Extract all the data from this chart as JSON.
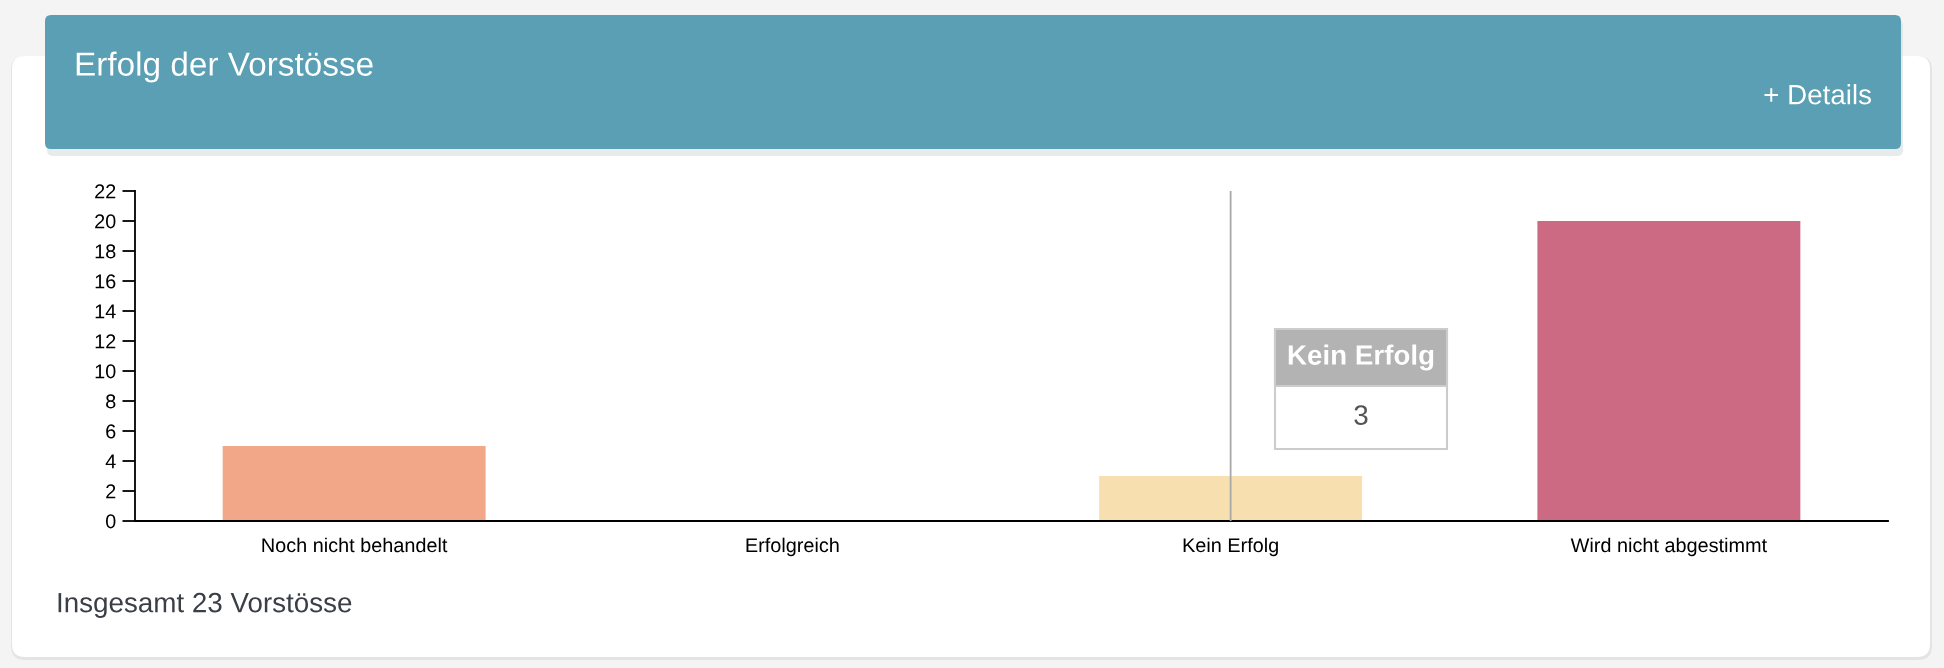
{
  "chart_data": {
    "type": "bar",
    "title": "Erfolg der Vorstösse",
    "categories": [
      "Noch nicht behandelt",
      "Erfolgreich",
      "Kein Erfolg",
      "Wird nicht abgestimmt"
    ],
    "values": [
      5,
      0,
      3,
      20
    ],
    "colors": [
      "#f1a788",
      null,
      "#f7dfb0",
      "#cc6983"
    ],
    "ylim": [
      0,
      22
    ],
    "yticks": [
      0,
      2,
      4,
      6,
      8,
      10,
      12,
      14,
      16,
      18,
      20,
      22
    ],
    "ref_lines": [
      {
        "axis": "x",
        "value": "Kein Erfolg",
        "color": "#a9a9a9"
      }
    ],
    "annotations": [
      "+ Details",
      "Insgesamt 23 Vorstösse",
      "Kein Erfolg",
      "3"
    ]
  }
}
